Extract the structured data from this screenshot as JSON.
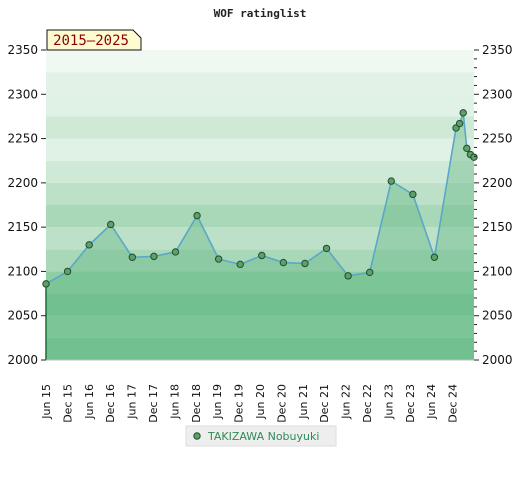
{
  "chart_data": {
    "type": "area",
    "title": "WOF ratinglist",
    "period_badge": "2015–2025",
    "ylim": [
      2000,
      2350
    ],
    "ytick_step": 50,
    "yticks_left": [
      "2000",
      "2050",
      "2100",
      "2150",
      "2200",
      "2250",
      "2300",
      "2350"
    ],
    "yticks_right": [
      "2000",
      "2050",
      "2100",
      "2150",
      "2200",
      "2250",
      "2300",
      "2350"
    ],
    "xtick_labels": [
      "Jun 15",
      "Dec 15",
      "Jun 16",
      "Dec 16",
      "Jun 17",
      "Dec 17",
      "Jun 18",
      "Dec 18",
      "Jun 19",
      "Dec 19",
      "Jun 20",
      "Dec 20",
      "Jun 21",
      "Dec 21",
      "Jun 22",
      "Dec 22",
      "Jun 23",
      "Dec 23",
      "Jun 24",
      "Dec 24"
    ],
    "series": [
      {
        "name": "TAKIZAWA Nobuyuki",
        "color": "#63b886",
        "line_color": "#5aa7c7",
        "points": [
          {
            "x": "2015-06",
            "y": 2086
          },
          {
            "x": "2015-12",
            "y": 2100
          },
          {
            "x": "2016-06",
            "y": 2130
          },
          {
            "x": "2016-12",
            "y": 2153
          },
          {
            "x": "2017-06",
            "y": 2116
          },
          {
            "x": "2017-12",
            "y": 2117
          },
          {
            "x": "2018-06",
            "y": 2122
          },
          {
            "x": "2018-12",
            "y": 2163
          },
          {
            "x": "2019-06",
            "y": 2114
          },
          {
            "x": "2019-12",
            "y": 2108
          },
          {
            "x": "2020-06",
            "y": 2118
          },
          {
            "x": "2020-12",
            "y": 2110
          },
          {
            "x": "2021-06",
            "y": 2109
          },
          {
            "x": "2021-12",
            "y": 2126
          },
          {
            "x": "2022-06",
            "y": 2095
          },
          {
            "x": "2022-12",
            "y": 2099
          },
          {
            "x": "2023-06",
            "y": 2202
          },
          {
            "x": "2023-12",
            "y": 2187
          },
          {
            "x": "2024-06",
            "y": 2116
          },
          {
            "x": "2024-12",
            "y": 2262
          },
          {
            "x": "2025-01",
            "y": 2267
          },
          {
            "x": "2025-02",
            "y": 2279
          },
          {
            "x": "2025-03",
            "y": 2239
          },
          {
            "x": "2025-04",
            "y": 2232
          },
          {
            "x": "2025-05",
            "y": 2229
          }
        ]
      }
    ],
    "legend": {
      "position": "bottom-center",
      "items": [
        "TAKIZAWA Nobuyuki"
      ]
    },
    "grid": true,
    "band_colors": [
      "#78c192",
      "#9dd2ae",
      "#c7e6d1",
      "#e7f5ec"
    ],
    "marker_color": "#5e9f6a",
    "marker_edge": "#1f4f2b"
  }
}
